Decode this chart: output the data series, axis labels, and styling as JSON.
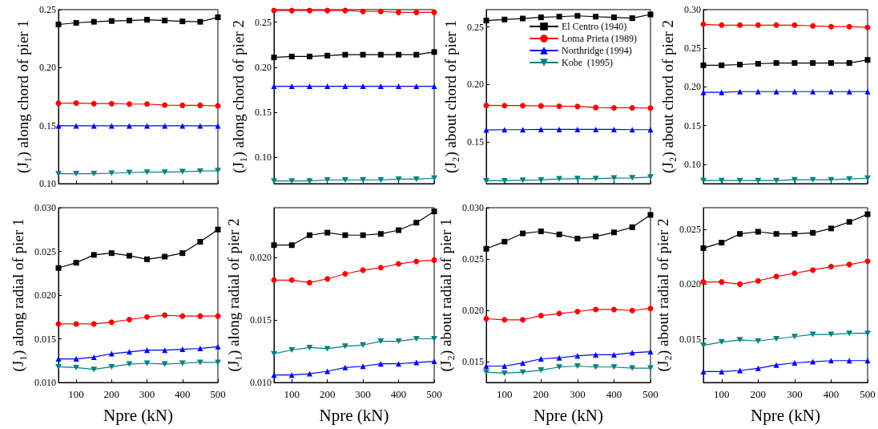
{
  "chart_data": [
    {
      "type": "line",
      "ylabel": "(J₁) along chord of pier 1",
      "x": [
        50,
        100,
        150,
        200,
        250,
        300,
        350,
        400,
        450,
        500
      ],
      "xlim": [
        50,
        500
      ],
      "xticks": [
        100,
        200,
        300,
        400,
        500
      ],
      "ylim": [
        0.1,
        0.25
      ],
      "yticks": [
        {
          "value": 0.1,
          "label": "0.10"
        },
        {
          "value": 0.15,
          "label": "0.15"
        },
        {
          "value": 0.2,
          "label": "0.20"
        },
        {
          "value": 0.25,
          "label": "0.25"
        }
      ],
      "tick_labels": "y",
      "grid": false,
      "legend": false,
      "line_style": "solid",
      "series": [
        {
          "color": "#000000",
          "marker": "square",
          "values": [
            0.2372,
            0.2386,
            0.2395,
            0.2402,
            0.2406,
            0.2413,
            0.2406,
            0.2399,
            0.2395,
            0.2434
          ]
        },
        {
          "color": "#ff0000",
          "marker": "circle",
          "values": [
            0.1693,
            0.1695,
            0.169,
            0.169,
            0.1686,
            0.1686,
            0.1677,
            0.1675,
            0.1675,
            0.167
          ]
        },
        {
          "color": "#0000ff",
          "marker": "triangle",
          "values": [
            0.1498,
            0.1498,
            0.1498,
            0.1498,
            0.1498,
            0.1498,
            0.1498,
            0.1498,
            0.1498,
            0.1498
          ]
        },
        {
          "color": "#008080",
          "marker": "triangle-down",
          "values": [
            0.1085,
            0.1086,
            0.1086,
            0.109,
            0.1095,
            0.1099,
            0.1099,
            0.1103,
            0.1108,
            0.1112
          ]
        }
      ]
    },
    {
      "type": "line",
      "ylabel": "(J₁) along chord of pier 2",
      "x": [
        50,
        100,
        150,
        200,
        250,
        300,
        350,
        400,
        450,
        500
      ],
      "xlim": [
        50,
        500
      ],
      "xticks": [
        100,
        200,
        300,
        400,
        500
      ],
      "ylim": [
        0.071,
        0.264
      ],
      "yticks": [
        {
          "value": 0.1,
          "label": "0.10"
        },
        {
          "value": 0.15,
          "label": "0.15"
        },
        {
          "value": 0.2,
          "label": "0.20"
        },
        {
          "value": 0.25,
          "label": "0.25"
        }
      ],
      "tick_labels": "y",
      "grid": false,
      "legend": false,
      "line_style": "solid",
      "series": [
        {
          "color": "#000000",
          "marker": "square",
          "values": [
            0.211,
            0.212,
            0.212,
            0.213,
            0.214,
            0.214,
            0.214,
            0.214,
            0.214,
            0.217
          ]
        },
        {
          "color": "#ff0000",
          "marker": "circle",
          "values": [
            0.263,
            0.263,
            0.263,
            0.263,
            0.263,
            0.262,
            0.262,
            0.261,
            0.261,
            0.261
          ]
        },
        {
          "color": "#0000ff",
          "marker": "triangle",
          "values": [
            0.179,
            0.179,
            0.179,
            0.179,
            0.179,
            0.179,
            0.179,
            0.179,
            0.179,
            0.179
          ]
        },
        {
          "color": "#008080",
          "marker": "triangle-down",
          "values": [
            0.074,
            0.074,
            0.074,
            0.075,
            0.075,
            0.075,
            0.075,
            0.076,
            0.076,
            0.077
          ]
        }
      ]
    },
    {
      "type": "line",
      "ylabel": "(J₂) about chord of pier 1",
      "x": [
        50,
        100,
        150,
        200,
        250,
        300,
        350,
        400,
        450,
        500
      ],
      "xlim": [
        50,
        500
      ],
      "xticks": [
        100,
        200,
        300,
        400,
        500
      ],
      "ylim": [
        0.114,
        0.265
      ],
      "yticks": [
        {
          "value": 0.15,
          "label": "0.15"
        },
        {
          "value": 0.2,
          "label": "0.20"
        },
        {
          "value": 0.25,
          "label": "0.25"
        }
      ],
      "tick_labels": "y",
      "grid": false,
      "legend": "top right",
      "line_style": "solid",
      "series": [
        {
          "name": "El Centro (1940)",
          "color": "#000000",
          "marker": "square",
          "values": [
            0.2555,
            0.2564,
            0.2573,
            0.2583,
            0.2589,
            0.2596,
            0.2589,
            0.2583,
            0.2576,
            0.2608
          ]
        },
        {
          "name": "Loma Prieta (1989)",
          "color": "#ff0000",
          "marker": "circle",
          "values": [
            0.1819,
            0.1817,
            0.1817,
            0.1814,
            0.1812,
            0.181,
            0.18,
            0.1798,
            0.1798,
            0.1796
          ]
        },
        {
          "name": "Northridge (1994)",
          "color": "#0000ff",
          "marker": "triangle",
          "values": [
            0.1606,
            0.1608,
            0.1608,
            0.161,
            0.161,
            0.161,
            0.161,
            0.161,
            0.1608,
            0.1608
          ]
        },
        {
          "name": "Kobe  (1995)",
          "color": "#008080",
          "marker": "triangle-down",
          "values": [
            0.1165,
            0.1165,
            0.117,
            0.1172,
            0.1181,
            0.1183,
            0.1183,
            0.1188,
            0.119,
            0.1197
          ]
        }
      ]
    },
    {
      "type": "line",
      "ylabel": "(J₂) about chord of pier 2",
      "x": [
        50,
        100,
        150,
        200,
        250,
        300,
        350,
        400,
        450,
        500
      ],
      "xlim": [
        50,
        500
      ],
      "xticks": [
        100,
        200,
        300,
        400,
        500
      ],
      "ylim": [
        0.075,
        0.3
      ],
      "yticks": [
        {
          "value": 0.1,
          "label": "0.10"
        },
        {
          "value": 0.15,
          "label": "0.15"
        },
        {
          "value": 0.2,
          "label": "0.20"
        },
        {
          "value": 0.25,
          "label": "0.25"
        },
        {
          "value": 0.3,
          "label": "0.30"
        }
      ],
      "tick_labels": "y",
      "grid": false,
      "legend": false,
      "line_style": "solid",
      "series": [
        {
          "color": "#000000",
          "marker": "square",
          "values": [
            0.228,
            0.228,
            0.229,
            0.23,
            0.231,
            0.231,
            0.231,
            0.231,
            0.231,
            0.235
          ]
        },
        {
          "color": "#ff0000",
          "marker": "circle",
          "values": [
            0.281,
            0.28,
            0.28,
            0.28,
            0.28,
            0.28,
            0.279,
            0.278,
            0.278,
            0.277
          ]
        },
        {
          "color": "#0000ff",
          "marker": "triangle",
          "values": [
            0.193,
            0.193,
            0.194,
            0.194,
            0.194,
            0.194,
            0.194,
            0.194,
            0.194,
            0.194
          ]
        },
        {
          "color": "#008080",
          "marker": "triangle-down",
          "values": [
            0.079,
            0.079,
            0.079,
            0.079,
            0.079,
            0.08,
            0.08,
            0.08,
            0.081,
            0.082
          ]
        }
      ]
    },
    {
      "type": "line",
      "ylabel": "(J₁) along radial of pier 1",
      "xlabel": "Npre (kN)",
      "x": [
        50,
        100,
        150,
        200,
        250,
        300,
        350,
        400,
        450,
        500
      ],
      "xlim": [
        50,
        500
      ],
      "xticks": [
        100,
        200,
        300,
        400,
        500
      ],
      "ylim": [
        0.01,
        0.03
      ],
      "yticks": [
        {
          "value": 0.01,
          "label": "0.010"
        },
        {
          "value": 0.015,
          "label": "0.015"
        },
        {
          "value": 0.02,
          "label": "0.020"
        },
        {
          "value": 0.025,
          "label": "0.025"
        },
        {
          "value": 0.03,
          "label": "0.030"
        }
      ],
      "grid": false,
      "legend": false,
      "line_style": "solid",
      "series": [
        {
          "color": "#000000",
          "marker": "square",
          "values": [
            0.0231,
            0.0237,
            0.0246,
            0.0248,
            0.0245,
            0.0241,
            0.0244,
            0.0248,
            0.0261,
            0.0275
          ]
        },
        {
          "color": "#ff0000",
          "marker": "circle",
          "values": [
            0.0167,
            0.0167,
            0.0167,
            0.0169,
            0.0172,
            0.0175,
            0.0177,
            0.0176,
            0.0176,
            0.0176
          ]
        },
        {
          "color": "#0000ff",
          "marker": "triangle",
          "values": [
            0.0127,
            0.0127,
            0.0129,
            0.0133,
            0.0135,
            0.0137,
            0.0137,
            0.0138,
            0.0139,
            0.0141
          ]
        },
        {
          "color": "#008080",
          "marker": "triangle-down",
          "values": [
            0.0118,
            0.0117,
            0.0115,
            0.0118,
            0.0121,
            0.0122,
            0.0121,
            0.0122,
            0.0123,
            0.0123
          ]
        }
      ]
    },
    {
      "type": "line",
      "ylabel": "(J₁) along radial of pier 2",
      "xlabel": "Npre (kN)",
      "x": [
        50,
        100,
        150,
        200,
        250,
        300,
        350,
        400,
        450,
        500
      ],
      "xlim": [
        50,
        500
      ],
      "xticks": [
        100,
        200,
        300,
        400,
        500
      ],
      "ylim": [
        0.01,
        0.024
      ],
      "yticks": [
        {
          "value": 0.01,
          "label": "0.010"
        },
        {
          "value": 0.015,
          "label": "0.015"
        },
        {
          "value": 0.02,
          "label": "0.020"
        }
      ],
      "grid": false,
      "legend": false,
      "line_style": "solid",
      "series": [
        {
          "color": "#000000",
          "marker": "square",
          "values": [
            0.021,
            0.021,
            0.0218,
            0.022,
            0.0218,
            0.0218,
            0.0219,
            0.0222,
            0.0228,
            0.0237
          ]
        },
        {
          "color": "#ff0000",
          "marker": "circle",
          "values": [
            0.0182,
            0.0182,
            0.018,
            0.0183,
            0.0187,
            0.019,
            0.0192,
            0.0195,
            0.0197,
            0.0198
          ]
        },
        {
          "color": "#0000ff",
          "marker": "triangle",
          "values": [
            0.0106,
            0.0106,
            0.0107,
            0.0109,
            0.0112,
            0.0113,
            0.0115,
            0.0115,
            0.0116,
            0.0117
          ]
        },
        {
          "color": "#008080",
          "marker": "triangle-down",
          "values": [
            0.0123,
            0.0126,
            0.0128,
            0.0127,
            0.0129,
            0.013,
            0.0133,
            0.0133,
            0.0135,
            0.0135
          ]
        }
      ]
    },
    {
      "type": "line",
      "ylabel": "(J₂) about radial of pier 1",
      "xlabel": "Npre (kN)",
      "x": [
        50,
        100,
        150,
        200,
        250,
        300,
        350,
        400,
        450,
        500
      ],
      "xlim": [
        50,
        500
      ],
      "xticks": [
        100,
        200,
        300,
        400,
        500
      ],
      "ylim": [
        0.013,
        0.03
      ],
      "yticks": [
        {
          "value": 0.015,
          "label": "0.015"
        },
        {
          "value": 0.02,
          "label": "0.020"
        },
        {
          "value": 0.025,
          "label": "0.025"
        },
        {
          "value": 0.03,
          "label": "0.030"
        }
      ],
      "grid": false,
      "legend": false,
      "line_style": "solid",
      "series": [
        {
          "color": "#000000",
          "marker": "square",
          "values": [
            0.026,
            0.0267,
            0.0275,
            0.0277,
            0.0274,
            0.027,
            0.0272,
            0.0276,
            0.0281,
            0.0293
          ]
        },
        {
          "color": "#ff0000",
          "marker": "circle",
          "values": [
            0.0192,
            0.0191,
            0.0191,
            0.0195,
            0.0197,
            0.0199,
            0.0201,
            0.0201,
            0.02,
            0.0202
          ]
        },
        {
          "color": "#0000ff",
          "marker": "triangle",
          "values": [
            0.0146,
            0.0146,
            0.0149,
            0.0153,
            0.0154,
            0.0156,
            0.0157,
            0.0157,
            0.0159,
            0.016
          ]
        },
        {
          "color": "#008080",
          "marker": "triangle-down",
          "values": [
            0.014,
            0.0139,
            0.014,
            0.0142,
            0.0145,
            0.0146,
            0.0145,
            0.0145,
            0.0144,
            0.0144
          ]
        }
      ]
    },
    {
      "type": "line",
      "ylabel": "(J₂) about radial of pier 2",
      "xlabel": "Npre (kN)",
      "x": [
        50,
        100,
        150,
        200,
        250,
        300,
        350,
        400,
        450,
        500
      ],
      "xlim": [
        50,
        500
      ],
      "xticks": [
        100,
        200,
        300,
        400,
        500
      ],
      "ylim": [
        0.011,
        0.027
      ],
      "yticks": [
        {
          "value": 0.015,
          "label": "0.015"
        },
        {
          "value": 0.02,
          "label": "0.020"
        },
        {
          "value": 0.025,
          "label": "0.025"
        }
      ],
      "grid": false,
      "legend": false,
      "line_style": "solid",
      "series": [
        {
          "color": "#000000",
          "marker": "square",
          "values": [
            0.0233,
            0.0238,
            0.0246,
            0.0248,
            0.0246,
            0.0246,
            0.0247,
            0.0251,
            0.0257,
            0.0264
          ]
        },
        {
          "color": "#ff0000",
          "marker": "circle",
          "values": [
            0.0202,
            0.0202,
            0.02,
            0.0203,
            0.0207,
            0.021,
            0.0213,
            0.0216,
            0.0218,
            0.0221
          ]
        },
        {
          "color": "#0000ff",
          "marker": "triangle",
          "values": [
            0.012,
            0.012,
            0.0121,
            0.0123,
            0.0126,
            0.0128,
            0.0129,
            0.013,
            0.013,
            0.013
          ]
        },
        {
          "color": "#008080",
          "marker": "triangle-down",
          "values": [
            0.0144,
            0.0147,
            0.0149,
            0.0148,
            0.015,
            0.0152,
            0.0154,
            0.0154,
            0.0155,
            0.0155
          ]
        }
      ]
    }
  ]
}
